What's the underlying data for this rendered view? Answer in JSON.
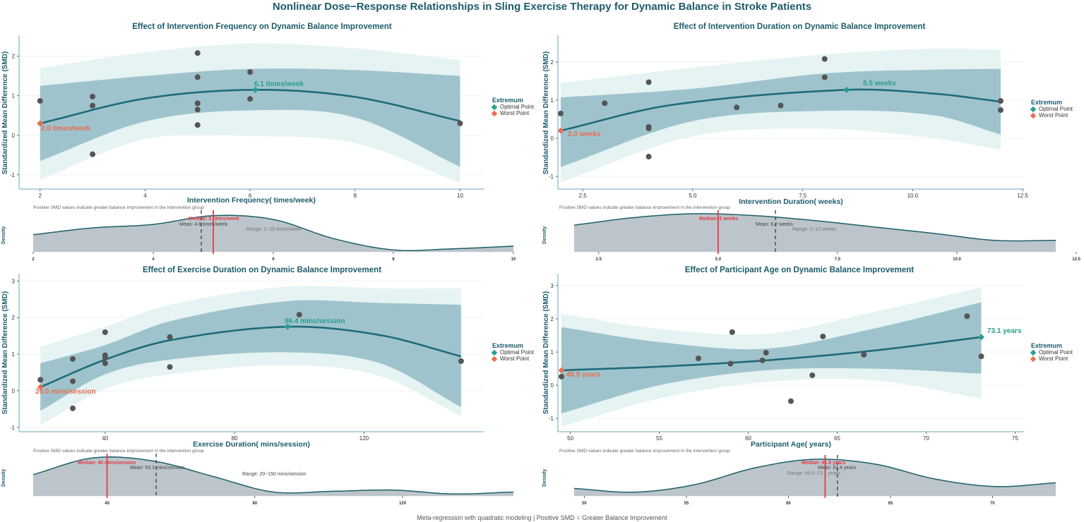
{
  "title": "Nonlinear Dose−Response Relationships in Sling Exercise Therapy for Dynamic Balance in Stroke Patients",
  "footer": "Meta-regression with quadratic modeling | Positive SMD = Greater Balance Improvement",
  "colors": {
    "title": "#1d5c6b",
    "curve": "#1f6b7a",
    "inner_band": "#9fc3cc",
    "outer_band": "#e6f3f3",
    "point": "#555555",
    "optimal": "#2a9d8f",
    "worst": "#e76f51",
    "median": "#e63946",
    "density_fill": "#bcc5cb",
    "density_line": "#1f5f6b"
  },
  "legend": {
    "title": "Extremum",
    "optimal": "Optimal Point",
    "worst": "Worst Point"
  },
  "note": "Positive SMD values indicate greater balance improvement in the intervention group",
  "ylabel": "Standardized Mean Difference (SMD)",
  "density_ylabel": "Density",
  "chart_data": [
    {
      "type": "scatter",
      "title": "Effect of Intervention Frequency on Dynamic Balance Improvement",
      "xlabel": "Intervention Frequency( times/week)",
      "ylabel": "Standardized Mean Difference (SMD)",
      "xticks": [
        2,
        4,
        6,
        8,
        10
      ],
      "yticks": [
        -1,
        0,
        1,
        2
      ],
      "grid": true,
      "points": [
        [
          2,
          0.87
        ],
        [
          3,
          0.98
        ],
        [
          3,
          0.75
        ],
        [
          3,
          -0.48
        ],
        [
          5,
          2.08
        ],
        [
          5,
          1.47
        ],
        [
          5,
          0.81
        ],
        [
          5,
          0.65
        ],
        [
          5,
          0.26
        ],
        [
          6,
          1.6
        ],
        [
          6,
          0.92
        ],
        [
          10,
          0.3
        ]
      ],
      "curve": [
        [
          2,
          0.3
        ],
        [
          4,
          0.93
        ],
        [
          6.1,
          1.15
        ],
        [
          8,
          0.97
        ],
        [
          10,
          0.36
        ]
      ],
      "inner_band": [
        [
          2,
          -0.65,
          1.25
        ],
        [
          4,
          0.35,
          1.5
        ],
        [
          6,
          0.63,
          1.68
        ],
        [
          8,
          0.45,
          1.65
        ],
        [
          10,
          -0.8,
          1.5
        ]
      ],
      "outer_band": [
        [
          2,
          -1.12,
          1.7
        ],
        [
          4,
          -0.1,
          2.1
        ],
        [
          6,
          -0.02,
          2.32
        ],
        [
          8,
          -0.2,
          2.2
        ],
        [
          10,
          -1.2,
          1.9
        ]
      ],
      "optimal": {
        "x": 6.1,
        "y": 1.15,
        "label": "6.1 times/week"
      },
      "worst": {
        "x": 2.0,
        "y": 0.3,
        "label": "2.0 times/week"
      },
      "density": {
        "xticks": [
          "2",
          "4",
          "6",
          "8",
          "10"
        ],
        "tick_values": [
          2,
          4,
          6,
          8,
          10
        ],
        "values": [
          0.45,
          0.63,
          0.72,
          0.95,
          0.85,
          0.35,
          0.05,
          0.08,
          0.15
        ],
        "median": 5,
        "mean": 4.8,
        "median_label": "Median: 5 times/week",
        "mean_label": "Mean: 4.8 times/week",
        "range_label": "Range: 2−10 times/week"
      }
    },
    {
      "type": "scatter",
      "title": "Effect of Intervention Duration on Dynamic Balance Improvement",
      "xlabel": "Intervention Duration( weeks)",
      "ylabel": "Standardized Mean Difference (SMD)",
      "xticks": [
        2.5,
        5.0,
        7.5,
        10.0,
        12.5
      ],
      "yticks": [
        -1,
        0,
        1,
        2
      ],
      "grid": true,
      "points": [
        [
          2,
          0.65
        ],
        [
          3,
          0.92
        ],
        [
          4,
          1.47
        ],
        [
          4,
          0.3
        ],
        [
          4,
          0.26
        ],
        [
          4,
          -0.48
        ],
        [
          6,
          0.81
        ],
        [
          7,
          0.86
        ],
        [
          8,
          2.08
        ],
        [
          8,
          1.6
        ],
        [
          12,
          0.98
        ],
        [
          12,
          0.74
        ]
      ],
      "curve": [
        [
          2,
          0.2
        ],
        [
          4.5,
          0.87
        ],
        [
          8.5,
          1.27
        ],
        [
          10.5,
          1.17
        ],
        [
          12,
          0.96
        ]
      ],
      "inner_band": [
        [
          2,
          -0.75,
          1.07
        ],
        [
          5,
          0.45,
          1.3
        ],
        [
          8,
          0.72,
          1.7
        ],
        [
          10.5,
          0.6,
          1.8
        ],
        [
          12,
          0.1,
          1.82
        ]
      ],
      "outer_band": [
        [
          2,
          -1.15,
          1.45
        ],
        [
          5,
          0.05,
          1.85
        ],
        [
          8,
          0.25,
          2.2
        ],
        [
          10.5,
          0.0,
          2.35
        ],
        [
          12,
          -0.3,
          2.32
        ]
      ],
      "optimal": {
        "x": 8.5,
        "y": 1.27,
        "label": "8.5 weeks"
      },
      "worst": {
        "x": 2.0,
        "y": 0.2,
        "label": "2.0 weeks"
      },
      "density": {
        "xticks": [
          "2.5",
          "5.0",
          "7.5",
          "10.0",
          "12.5"
        ],
        "tick_values": [
          2.5,
          5,
          7.5,
          10,
          12.5
        ],
        "values": [
          0.7,
          0.9,
          1.0,
          0.95,
          0.82,
          0.65,
          0.48,
          0.3,
          0.3
        ],
        "median": 5,
        "mean": 6.2,
        "median_label": "Median: 5 weeks",
        "mean_label": "Mean: 6.2 weeks",
        "range_label": "Range: 2−12 weeks"
      }
    },
    {
      "type": "scatter",
      "title": "Effect of Exercise Duration on Dynamic Balance Improvement",
      "xlabel": "Exercise Duration( mins/session)",
      "ylabel": "Standardized Mean Difference (SMD)",
      "xticks": [
        40,
        80,
        120
      ],
      "yticks": [
        -1,
        0,
        1,
        2,
        3
      ],
      "grid": true,
      "points": [
        [
          20,
          0.3
        ],
        [
          30,
          0.87
        ],
        [
          30,
          0.26
        ],
        [
          30,
          -0.48
        ],
        [
          40,
          1.6
        ],
        [
          40,
          0.97
        ],
        [
          40,
          0.9
        ],
        [
          40,
          0.75
        ],
        [
          60,
          1.47
        ],
        [
          60,
          0.65
        ],
        [
          100,
          2.08
        ],
        [
          150,
          0.81
        ]
      ],
      "curve": [
        [
          20,
          0.1
        ],
        [
          40,
          0.85
        ],
        [
          60,
          1.38
        ],
        [
          96.4,
          1.75
        ],
        [
          125,
          1.52
        ],
        [
          150,
          0.94
        ]
      ],
      "inner_band": [
        [
          20,
          -0.55,
          0.75
        ],
        [
          40,
          0.45,
          1.25
        ],
        [
          60,
          0.85,
          1.9
        ],
        [
          96.4,
          1.05,
          2.45
        ],
        [
          125,
          0.75,
          2.4
        ],
        [
          150,
          -0.45,
          2.35
        ]
      ],
      "outer_band": [
        [
          20,
          -0.95,
          1.2
        ],
        [
          40,
          0.05,
          1.75
        ],
        [
          60,
          0.45,
          2.35
        ],
        [
          96.4,
          0.7,
          2.85
        ],
        [
          125,
          0.4,
          2.8
        ],
        [
          150,
          -0.7,
          2.8
        ]
      ],
      "optimal": {
        "x": 96.4,
        "y": 1.75,
        "label": "96.4 mins/session"
      },
      "worst": {
        "x": 20.0,
        "y": 0.1,
        "label": "20.0 mins/session"
      },
      "density": {
        "xticks": [
          "40",
          "80",
          "120"
        ],
        "tick_values": [
          40,
          80,
          120
        ],
        "values": [
          0.55,
          0.98,
          0.9,
          0.5,
          0.1,
          0.12,
          0.15,
          0.05,
          0.1
        ],
        "median": 40,
        "mean": 53.3,
        "median_label": "Median: 40 mins/session",
        "mean_label": "Mean: 53.3 mins/session",
        "range_label": "Range: 20−150 mins/session"
      }
    },
    {
      "type": "scatter",
      "title": "Effect of Participant Age on Dynamic Balance Improvement",
      "xlabel": "Participant Age( years)",
      "ylabel": "Standardized Mean Difference (SMD)",
      "xticks": [
        50,
        55,
        60,
        65,
        70,
        75
      ],
      "yticks": [
        -1,
        0,
        1,
        2,
        3
      ],
      "grid": true,
      "points": [
        [
          49.5,
          0.26
        ],
        [
          57.2,
          0.81
        ],
        [
          59,
          0.65
        ],
        [
          59.1,
          1.6
        ],
        [
          60.8,
          0.75
        ],
        [
          61,
          0.98
        ],
        [
          62.4,
          -0.48
        ],
        [
          63.6,
          0.3
        ],
        [
          64.2,
          1.47
        ],
        [
          66.5,
          0.92
        ],
        [
          72.3,
          2.08
        ],
        [
          73.1,
          0.87
        ]
      ],
      "curve": [
        [
          49.5,
          0.45
        ],
        [
          55,
          0.56
        ],
        [
          61,
          0.75
        ],
        [
          67,
          1.04
        ],
        [
          73.1,
          1.45
        ]
      ],
      "inner_band": [
        [
          49.5,
          -0.85,
          1.75
        ],
        [
          55,
          0.0,
          1.3
        ],
        [
          61,
          0.45,
          1.1
        ],
        [
          67,
          0.5,
          1.7
        ],
        [
          73.1,
          0.35,
          2.5
        ]
      ],
      "outer_band": [
        [
          49.5,
          -1.25,
          2.15
        ],
        [
          55,
          -0.4,
          1.7
        ],
        [
          61,
          0.1,
          1.55
        ],
        [
          67,
          0.15,
          2.2
        ],
        [
          73.1,
          -0.4,
          2.95
        ]
      ],
      "optimal": {
        "x": 73.1,
        "y": 1.45,
        "label": "73.1 years"
      },
      "worst": {
        "x": 49.5,
        "y": 0.45,
        "label": "49.5 years"
      },
      "density": {
        "xticks": [
          "50",
          "55",
          "60",
          "65",
          "70"
        ],
        "tick_values": [
          50,
          55,
          60,
          65,
          70
        ],
        "values": [
          0.2,
          0.1,
          0.3,
          0.75,
          0.98,
          0.85,
          0.45,
          0.25,
          0.35
        ],
        "median": 61.8,
        "mean": 62.4,
        "median_label": "Median: 61.8 years",
        "mean_label": "Mean: 62.4 years",
        "range_label": "Range: 49.5−73.1 years"
      }
    }
  ]
}
